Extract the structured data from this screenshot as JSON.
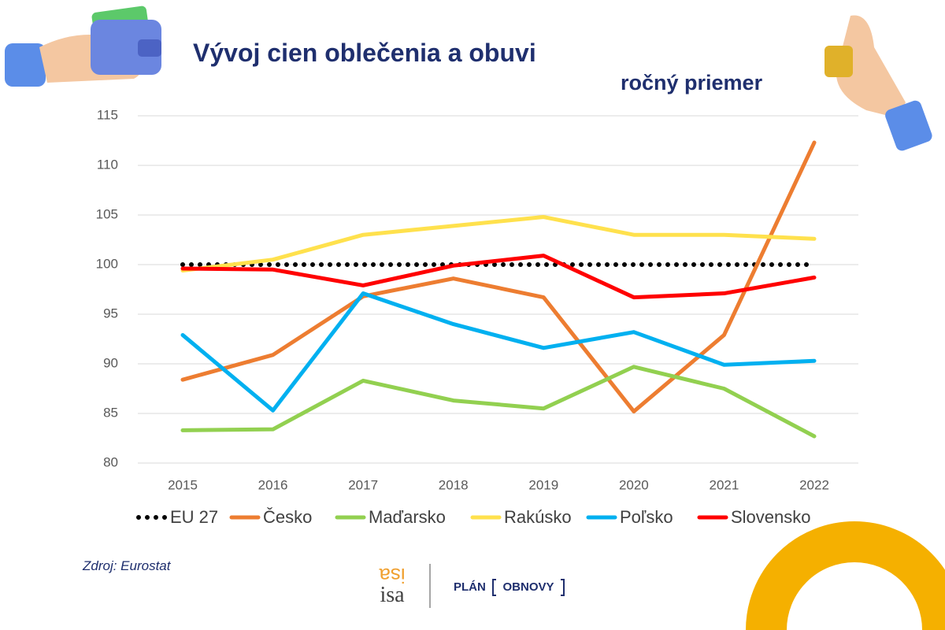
{
  "chart_data": {
    "type": "line",
    "title": "Vývoj cien oblečenia a obuvi",
    "subtitle": "ročný priemer",
    "categories": [
      "2015",
      "2016",
      "2017",
      "2018",
      "2019",
      "2020",
      "2021",
      "2022"
    ],
    "series": [
      {
        "name": "EU 27",
        "color": "#000000",
        "dotted": true,
        "values": [
          100,
          100,
          100,
          100,
          100,
          100,
          100,
          100
        ]
      },
      {
        "name": "Česko",
        "color": "#ed7d31",
        "values": [
          88.4,
          90.9,
          96.8,
          98.6,
          96.7,
          85.2,
          92.9,
          112.3
        ]
      },
      {
        "name": "Maďarsko",
        "color": "#92d050",
        "values": [
          83.3,
          83.4,
          88.3,
          86.3,
          85.5,
          89.7,
          87.5,
          82.7
        ]
      },
      {
        "name": "Rakúsko",
        "color": "#ffe14d",
        "values": [
          99.4,
          100.5,
          103.0,
          103.9,
          104.8,
          103.0,
          103.0,
          102.6
        ]
      },
      {
        "name": "Poľsko",
        "color": "#00b0f0",
        "values": [
          92.9,
          85.3,
          97.1,
          94.0,
          91.6,
          93.2,
          89.9,
          90.3
        ]
      },
      {
        "name": "Slovensko",
        "color": "#ff0000",
        "values": [
          99.6,
          99.5,
          97.9,
          99.9,
          100.9,
          96.7,
          97.1,
          98.7
        ]
      }
    ],
    "ylim": [
      80,
      115
    ],
    "yticks": [
      80,
      85,
      90,
      95,
      100,
      105,
      110,
      115
    ],
    "grid": true,
    "legend": "bottom"
  },
  "source": "Zdroj: Eurostat",
  "logos": {
    "isa": "isa",
    "plan": "PLÁN",
    "obnovy": "OBNOVY"
  }
}
